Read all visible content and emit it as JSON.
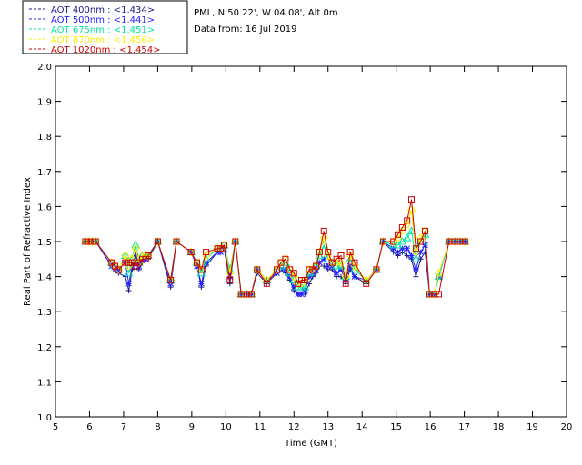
{
  "chart_data": {
    "type": "line",
    "title_lines": [
      "PML, N 50 22', W 04 08', Alt 0m",
      "Data from: 16 Jul 2019"
    ],
    "xlabel": "Time (GMT)",
    "ylabel": "Real Part of Refractive Index",
    "xlim": [
      5,
      20
    ],
    "ylim": [
      1.0,
      2.0
    ],
    "xticks": [
      5,
      6,
      7,
      8,
      9,
      10,
      11,
      12,
      13,
      14,
      15,
      16,
      17,
      18,
      19,
      20
    ],
    "yticks": [
      "1.0",
      "1.1",
      "1.2",
      "1.3",
      "1.4",
      "1.5",
      "1.6",
      "1.7",
      "1.8",
      "1.9",
      "2.0"
    ],
    "grid": false,
    "legend_position": "top-left",
    "x": [
      5.88,
      5.98,
      6.08,
      6.18,
      6.65,
      6.75,
      6.85,
      7.05,
      7.15,
      7.25,
      7.35,
      7.45,
      7.55,
      7.65,
      7.72,
      8.0,
      8.38,
      8.55,
      8.98,
      9.15,
      9.28,
      9.42,
      9.75,
      9.85,
      9.95,
      10.12,
      10.28,
      10.45,
      10.62,
      10.75,
      10.92,
      11.2,
      11.5,
      11.62,
      11.75,
      11.88,
      12.0,
      12.12,
      12.22,
      12.32,
      12.45,
      12.55,
      12.65,
      12.75,
      12.88,
      13.0,
      13.12,
      13.25,
      13.38,
      13.52,
      13.65,
      13.78,
      14.12,
      14.42,
      14.62,
      14.92,
      15.05,
      15.18,
      15.32,
      15.45,
      15.58,
      15.72,
      15.85,
      15.98,
      16.12,
      16.25,
      16.55,
      16.72,
      16.88,
      17.02
    ],
    "series": [
      {
        "name": "AOT  400nm : <1.434>",
        "color": "#1a1a8c",
        "marker": "plus",
        "values": [
          1.5,
          1.5,
          1.5,
          1.5,
          1.43,
          1.42,
          1.41,
          1.4,
          1.36,
          1.42,
          1.46,
          1.42,
          1.44,
          1.45,
          1.45,
          1.5,
          1.37,
          1.5,
          1.47,
          1.43,
          1.37,
          1.43,
          1.47,
          1.47,
          1.48,
          1.38,
          1.5,
          1.35,
          1.35,
          1.35,
          1.41,
          1.38,
          1.41,
          1.42,
          1.41,
          1.39,
          1.36,
          1.35,
          1.35,
          1.35,
          1.38,
          1.4,
          1.41,
          1.43,
          1.43,
          1.42,
          1.42,
          1.4,
          1.4,
          1.38,
          1.42,
          1.4,
          1.38,
          1.42,
          1.5,
          1.47,
          1.46,
          1.47,
          1.46,
          1.45,
          1.4,
          1.45,
          1.47,
          1.35,
          1.35,
          1.4,
          1.5,
          1.5,
          1.5,
          1.5
        ]
      },
      {
        "name": "AOT  500nm : <1.441>",
        "color": "#2222ff",
        "marker": "star",
        "values": [
          1.5,
          1.5,
          1.5,
          1.5,
          1.43,
          1.42,
          1.42,
          1.44,
          1.38,
          1.43,
          1.47,
          1.43,
          1.45,
          1.45,
          1.46,
          1.5,
          1.38,
          1.5,
          1.47,
          1.43,
          1.38,
          1.44,
          1.47,
          1.47,
          1.48,
          1.4,
          1.5,
          1.35,
          1.35,
          1.35,
          1.42,
          1.39,
          1.41,
          1.42,
          1.42,
          1.4,
          1.37,
          1.35,
          1.35,
          1.36,
          1.4,
          1.41,
          1.42,
          1.44,
          1.45,
          1.43,
          1.43,
          1.41,
          1.42,
          1.39,
          1.43,
          1.4,
          1.39,
          1.42,
          1.5,
          1.48,
          1.47,
          1.48,
          1.48,
          1.46,
          1.42,
          1.47,
          1.49,
          1.35,
          1.35,
          1.4,
          1.5,
          1.5,
          1.5,
          1.5
        ]
      },
      {
        "name": "AOT  675nm : <1.451>",
        "color": "#00e5a0",
        "marker": "triangle",
        "values": [
          1.5,
          1.5,
          1.5,
          1.5,
          1.44,
          1.43,
          1.42,
          1.46,
          1.41,
          1.45,
          1.49,
          1.44,
          1.46,
          1.46,
          1.46,
          1.5,
          1.39,
          1.5,
          1.47,
          1.44,
          1.41,
          1.45,
          1.48,
          1.48,
          1.49,
          1.42,
          1.5,
          1.35,
          1.35,
          1.35,
          1.42,
          1.39,
          1.42,
          1.43,
          1.44,
          1.41,
          1.39,
          1.37,
          1.37,
          1.37,
          1.41,
          1.42,
          1.43,
          1.46,
          1.49,
          1.45,
          1.44,
          1.43,
          1.43,
          1.4,
          1.45,
          1.42,
          1.39,
          1.42,
          1.5,
          1.49,
          1.49,
          1.5,
          1.51,
          1.53,
          1.45,
          1.5,
          1.52,
          1.35,
          1.35,
          1.4,
          1.5,
          1.5,
          1.5,
          1.5
        ]
      },
      {
        "name": "AOT  870nm : <1.456>",
        "color": "#ffee00",
        "marker": "diamond",
        "values": [
          1.5,
          1.5,
          1.5,
          1.5,
          1.44,
          1.43,
          1.42,
          1.46,
          1.43,
          1.45,
          1.48,
          1.44,
          1.46,
          1.46,
          1.46,
          1.5,
          1.39,
          1.5,
          1.47,
          1.44,
          1.42,
          1.46,
          1.48,
          1.48,
          1.49,
          1.41,
          1.5,
          1.35,
          1.35,
          1.35,
          1.42,
          1.39,
          1.42,
          1.44,
          1.45,
          1.42,
          1.4,
          1.38,
          1.38,
          1.39,
          1.42,
          1.42,
          1.43,
          1.47,
          1.51,
          1.46,
          1.44,
          1.44,
          1.44,
          1.4,
          1.46,
          1.43,
          1.39,
          1.42,
          1.5,
          1.5,
          1.51,
          1.53,
          1.55,
          1.59,
          1.47,
          1.51,
          1.53,
          1.35,
          1.35,
          1.41,
          1.5,
          1.5,
          1.5,
          1.5
        ]
      },
      {
        "name": "AOT 1020nm : <1.454>",
        "color": "#cc0000",
        "marker": "square",
        "values": [
          1.5,
          1.5,
          1.5,
          1.5,
          1.44,
          1.43,
          1.42,
          1.44,
          1.44,
          1.44,
          1.43,
          1.44,
          1.45,
          1.45,
          1.46,
          1.5,
          1.39,
          1.5,
          1.47,
          1.44,
          1.42,
          1.47,
          1.48,
          1.48,
          1.49,
          1.39,
          1.5,
          1.35,
          1.35,
          1.35,
          1.42,
          1.38,
          1.42,
          1.44,
          1.45,
          1.42,
          1.41,
          1.38,
          1.39,
          1.39,
          1.42,
          1.42,
          1.43,
          1.47,
          1.53,
          1.47,
          1.44,
          1.45,
          1.46,
          1.38,
          1.47,
          1.44,
          1.38,
          1.42,
          1.5,
          1.5,
          1.52,
          1.54,
          1.56,
          1.62,
          1.48,
          1.5,
          1.53,
          1.35,
          1.35,
          1.35,
          1.5,
          1.5,
          1.5,
          1.5
        ]
      }
    ]
  }
}
